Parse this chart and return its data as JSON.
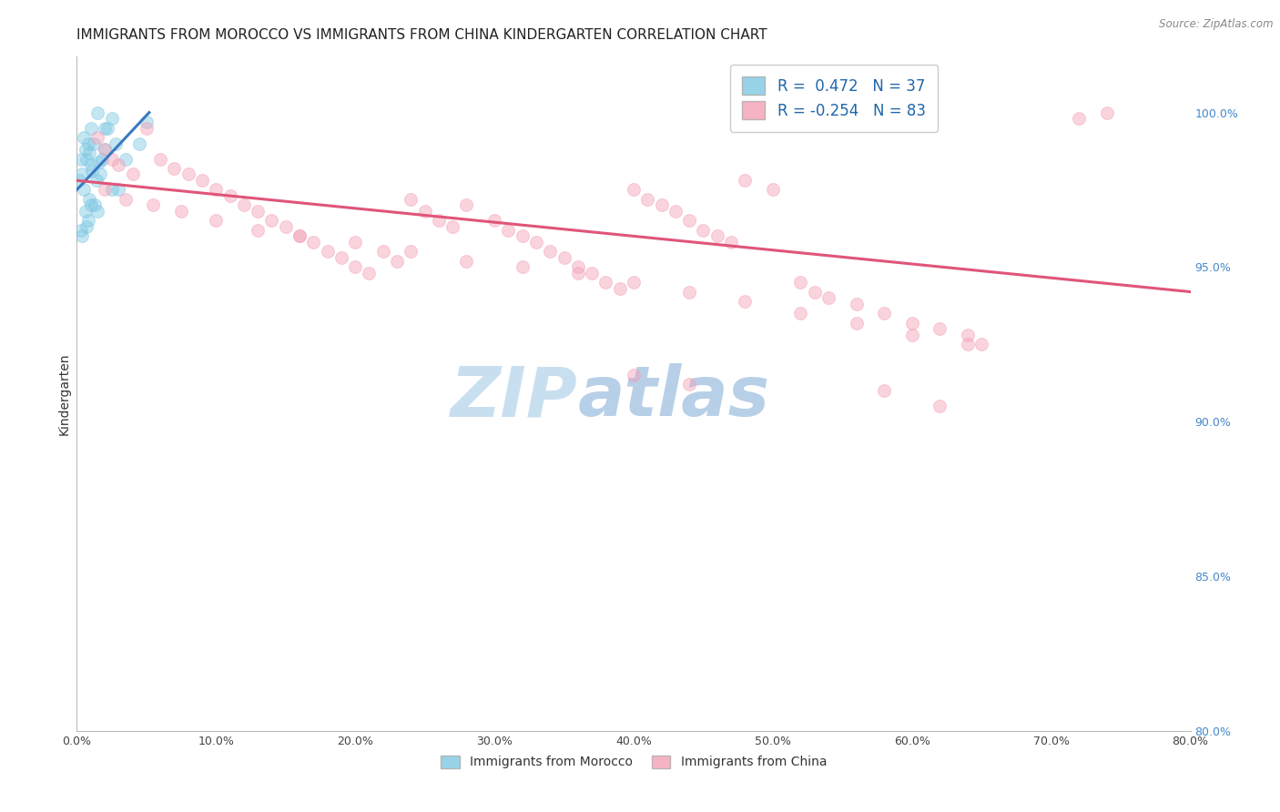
{
  "title": "IMMIGRANTS FROM MOROCCO VS IMMIGRANTS FROM CHINA KINDERGARTEN CORRELATION CHART",
  "source": "Source: ZipAtlas.com",
  "ylabel": "Kindergarten",
  "x_tick_labels": [
    "0.0%",
    "10.0%",
    "20.0%",
    "30.0%",
    "40.0%",
    "50.0%",
    "60.0%",
    "70.0%",
    "80.0%"
  ],
  "x_tick_values": [
    0.0,
    10.0,
    20.0,
    30.0,
    40.0,
    50.0,
    60.0,
    70.0,
    80.0
  ],
  "y_right_labels": [
    "80.0%",
    "85.0%",
    "90.0%",
    "95.0%",
    "100.0%"
  ],
  "y_right_values": [
    80.0,
    85.0,
    90.0,
    95.0,
    100.0
  ],
  "xlim": [
    0.0,
    80.0
  ],
  "ylim": [
    80.0,
    101.8
  ],
  "legend_r1": "R =  0.472   N = 37",
  "legend_r2": "R = -0.254   N = 83",
  "legend_label1": "Immigrants from Morocco",
  "legend_label2": "Immigrants from China",
  "color_morocco": "#7ec8e3",
  "color_china": "#f4a0b5",
  "color_line_morocco": "#3a7abf",
  "color_line_china": "#e05578",
  "watermark_zip": "ZIP",
  "watermark_atlas": "atlas",
  "watermark_color_zip": "#c8dff0",
  "watermark_color_atlas": "#b8cfe8",
  "blue_scatter_x": [
    0.2,
    0.3,
    0.3,
    0.4,
    0.5,
    0.5,
    0.6,
    0.6,
    0.7,
    0.8,
    0.8,
    0.9,
    0.9,
    1.0,
    1.0,
    1.0,
    1.1,
    1.2,
    1.3,
    1.4,
    1.5,
    1.5,
    1.6,
    1.7,
    1.8,
    2.0,
    2.0,
    2.2,
    2.5,
    2.5,
    2.8,
    3.0,
    3.5,
    4.5,
    5.0,
    0.4,
    0.7
  ],
  "blue_scatter_y": [
    97.8,
    98.5,
    96.2,
    98.0,
    99.2,
    97.5,
    98.8,
    96.8,
    98.5,
    99.0,
    96.5,
    98.7,
    97.2,
    98.3,
    97.0,
    99.5,
    98.1,
    99.0,
    97.0,
    97.8,
    100.0,
    96.8,
    98.4,
    98.0,
    98.5,
    98.8,
    99.5,
    99.5,
    97.5,
    99.8,
    99.0,
    97.5,
    98.5,
    99.0,
    99.7,
    96.0,
    96.3
  ],
  "pink_scatter_x": [
    1.5,
    2.0,
    2.5,
    3.0,
    4.0,
    5.0,
    6.0,
    7.0,
    8.0,
    9.0,
    10.0,
    11.0,
    12.0,
    13.0,
    14.0,
    15.0,
    16.0,
    17.0,
    18.0,
    19.0,
    20.0,
    21.0,
    22.0,
    23.0,
    24.0,
    25.0,
    26.0,
    27.0,
    28.0,
    30.0,
    31.0,
    32.0,
    33.0,
    34.0,
    35.0,
    36.0,
    37.0,
    38.0,
    39.0,
    40.0,
    41.0,
    42.0,
    43.0,
    44.0,
    45.0,
    46.0,
    47.0,
    48.0,
    50.0,
    52.0,
    53.0,
    54.0,
    56.0,
    58.0,
    60.0,
    62.0,
    64.0,
    65.0,
    72.0,
    74.0,
    2.0,
    3.5,
    5.5,
    7.5,
    10.0,
    13.0,
    16.0,
    20.0,
    24.0,
    28.0,
    32.0,
    36.0,
    40.0,
    44.0,
    48.0,
    52.0,
    56.0,
    60.0,
    64.0,
    40.0,
    44.0,
    58.0,
    62.0
  ],
  "pink_scatter_y": [
    99.2,
    98.8,
    98.5,
    98.3,
    98.0,
    99.5,
    98.5,
    98.2,
    98.0,
    97.8,
    97.5,
    97.3,
    97.0,
    96.8,
    96.5,
    96.3,
    96.0,
    95.8,
    95.5,
    95.3,
    95.0,
    94.8,
    95.5,
    95.2,
    97.2,
    96.8,
    96.5,
    96.3,
    97.0,
    96.5,
    96.2,
    96.0,
    95.8,
    95.5,
    95.3,
    95.0,
    94.8,
    94.5,
    94.3,
    97.5,
    97.2,
    97.0,
    96.8,
    96.5,
    96.2,
    96.0,
    95.8,
    97.8,
    97.5,
    94.5,
    94.2,
    94.0,
    93.8,
    93.5,
    93.2,
    93.0,
    92.8,
    92.5,
    99.8,
    100.0,
    97.5,
    97.2,
    97.0,
    96.8,
    96.5,
    96.2,
    96.0,
    95.8,
    95.5,
    95.2,
    95.0,
    94.8,
    94.5,
    94.2,
    93.9,
    93.5,
    93.2,
    92.8,
    92.5,
    91.5,
    91.2,
    91.0,
    90.5
  ],
  "blue_trendline_x": [
    0.0,
    5.2
  ],
  "blue_trendline_y": [
    97.5,
    100.0
  ],
  "pink_trendline_x": [
    0.0,
    80.0
  ],
  "pink_trendline_y": [
    97.8,
    94.2
  ],
  "grid_color": "#e0e0e0",
  "background_color": "#ffffff",
  "title_fontsize": 11,
  "axis_label_fontsize": 10,
  "tick_fontsize": 9,
  "scatter_size": 100,
  "scatter_alpha": 0.45,
  "scatter_linewidth": 0.8
}
